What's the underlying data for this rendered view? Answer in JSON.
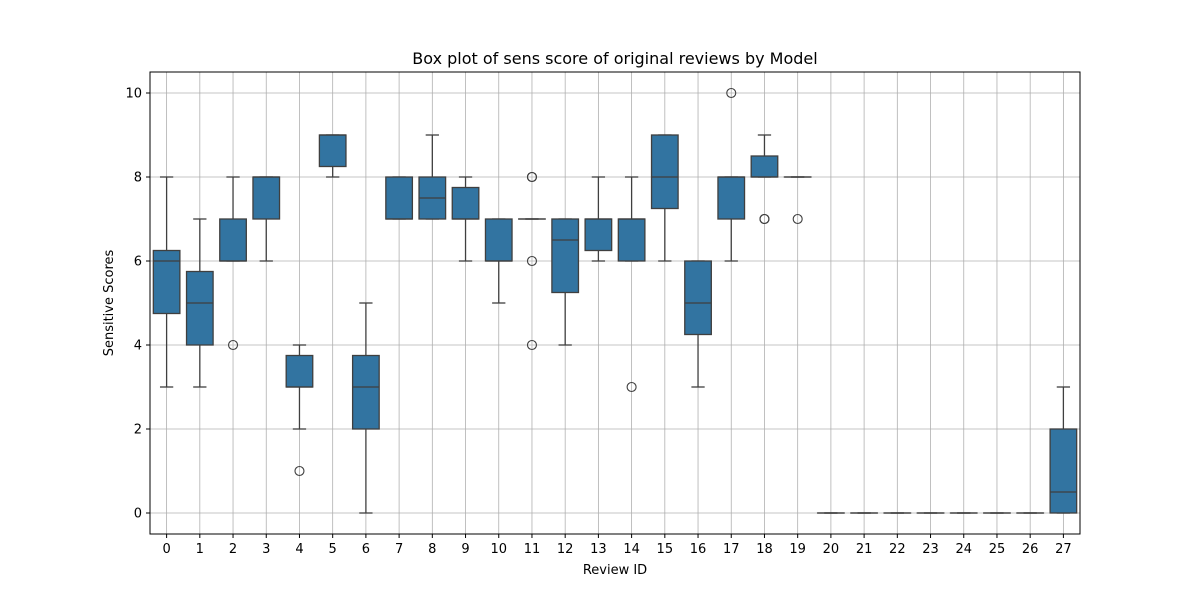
{
  "chart_data": {
    "type": "box",
    "title": "Box plot of sens score of original reviews by Model",
    "xlabel": "Review ID",
    "ylabel": "Sensitive Scores",
    "ylim": [
      -0.5,
      10.5
    ],
    "yticks": [
      0,
      2,
      4,
      6,
      8,
      10
    ],
    "grid": true,
    "box_color": "#3274a1",
    "edge_color": "#3f3f3f",
    "grid_color": "#b0b0b0",
    "boxes": [
      {
        "label": "0",
        "whisker_low": 3,
        "q1": 4.75,
        "median": 6,
        "q3": 6.25,
        "whisker_high": 8,
        "outliers": []
      },
      {
        "label": "1",
        "whisker_low": 3,
        "q1": 4,
        "median": 5,
        "q3": 5.75,
        "whisker_high": 7,
        "outliers": []
      },
      {
        "label": "2",
        "whisker_low": 6,
        "q1": 6,
        "median": 6,
        "q3": 7,
        "whisker_high": 8,
        "outliers": [
          4
        ]
      },
      {
        "label": "3",
        "whisker_low": 6,
        "q1": 7,
        "median": 8,
        "q3": 8,
        "whisker_high": 8,
        "outliers": []
      },
      {
        "label": "4",
        "whisker_low": 2,
        "q1": 3,
        "median": 3,
        "q3": 3.75,
        "whisker_high": 4,
        "outliers": [
          1
        ]
      },
      {
        "label": "5",
        "whisker_low": 8,
        "q1": 8.25,
        "median": 9,
        "q3": 9,
        "whisker_high": 9,
        "outliers": []
      },
      {
        "label": "6",
        "whisker_low": 0,
        "q1": 2,
        "median": 3,
        "q3": 3.75,
        "whisker_high": 5,
        "outliers": []
      },
      {
        "label": "7",
        "whisker_low": 7,
        "q1": 7,
        "median": 7,
        "q3": 8,
        "whisker_high": 8,
        "outliers": []
      },
      {
        "label": "8",
        "whisker_low": 7,
        "q1": 7,
        "median": 7.5,
        "q3": 8,
        "whisker_high": 9,
        "outliers": []
      },
      {
        "label": "9",
        "whisker_low": 6,
        "q1": 7,
        "median": 7,
        "q3": 7.75,
        "whisker_high": 8,
        "outliers": []
      },
      {
        "label": "10",
        "whisker_low": 5,
        "q1": 6,
        "median": 6,
        "q3": 7,
        "whisker_high": 7,
        "outliers": []
      },
      {
        "label": "11",
        "whisker_low": 7,
        "q1": 7,
        "median": 7,
        "q3": 7,
        "whisker_high": 7,
        "outliers": [
          8,
          8,
          6,
          4
        ]
      },
      {
        "label": "12",
        "whisker_low": 4,
        "q1": 5.25,
        "median": 6.5,
        "q3": 7,
        "whisker_high": 7,
        "outliers": []
      },
      {
        "label": "13",
        "whisker_low": 6,
        "q1": 6.25,
        "median": 7,
        "q3": 7,
        "whisker_high": 8,
        "outliers": []
      },
      {
        "label": "14",
        "whisker_low": 6,
        "q1": 6,
        "median": 7,
        "q3": 7,
        "whisker_high": 8,
        "outliers": [
          3
        ]
      },
      {
        "label": "15",
        "whisker_low": 6,
        "q1": 7.25,
        "median": 8,
        "q3": 9,
        "whisker_high": 9,
        "outliers": []
      },
      {
        "label": "16",
        "whisker_low": 3,
        "q1": 4.25,
        "median": 5,
        "q3": 6,
        "whisker_high": 6,
        "outliers": []
      },
      {
        "label": "17",
        "whisker_low": 6,
        "q1": 7,
        "median": 8,
        "q3": 8,
        "whisker_high": 8,
        "outliers": [
          10
        ]
      },
      {
        "label": "18",
        "whisker_low": 8,
        "q1": 8,
        "median": 8,
        "q3": 8.5,
        "whisker_high": 9,
        "outliers": [
          7,
          7
        ]
      },
      {
        "label": "19",
        "whisker_low": 8,
        "q1": 8,
        "median": 8,
        "q3": 8,
        "whisker_high": 8,
        "outliers": [
          7
        ]
      },
      {
        "label": "20",
        "whisker_low": 0,
        "q1": 0,
        "median": 0,
        "q3": 0,
        "whisker_high": 0,
        "outliers": []
      },
      {
        "label": "21",
        "whisker_low": 0,
        "q1": 0,
        "median": 0,
        "q3": 0,
        "whisker_high": 0,
        "outliers": []
      },
      {
        "label": "22",
        "whisker_low": 0,
        "q1": 0,
        "median": 0,
        "q3": 0,
        "whisker_high": 0,
        "outliers": []
      },
      {
        "label": "23",
        "whisker_low": 0,
        "q1": 0,
        "median": 0,
        "q3": 0,
        "whisker_high": 0,
        "outliers": []
      },
      {
        "label": "24",
        "whisker_low": 0,
        "q1": 0,
        "median": 0,
        "q3": 0,
        "whisker_high": 0,
        "outliers": []
      },
      {
        "label": "25",
        "whisker_low": 0,
        "q1": 0,
        "median": 0,
        "q3": 0,
        "whisker_high": 0,
        "outliers": []
      },
      {
        "label": "26",
        "whisker_low": 0,
        "q1": 0,
        "median": 0,
        "q3": 0,
        "whisker_high": 0,
        "outliers": []
      },
      {
        "label": "27",
        "whisker_low": 0,
        "q1": 0,
        "median": 0.5,
        "q3": 2,
        "whisker_high": 3,
        "outliers": []
      }
    ]
  }
}
